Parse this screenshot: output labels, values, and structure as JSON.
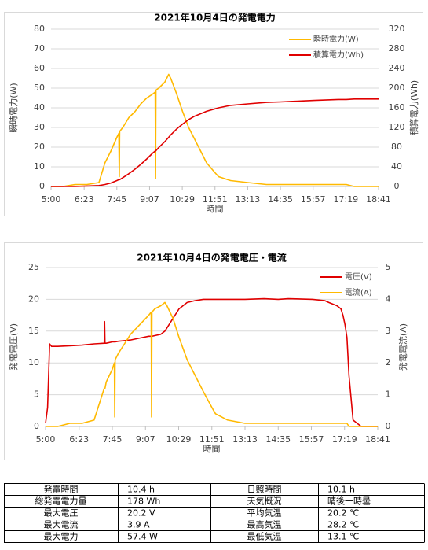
{
  "chart_data": [
    {
      "type": "line",
      "title": "2021年10月4日の発電電力",
      "xlabel": "時間",
      "ylabel": "瞬時電力(W)",
      "y2label": "積算電力(Wh)",
      "legend": "upper right",
      "grid": true,
      "xlim": [
        300,
        1121
      ],
      "xticks": [
        {
          "value": 300,
          "label": "5:00"
        },
        {
          "value": 383,
          "label": "6:23"
        },
        {
          "value": 465,
          "label": "7:45"
        },
        {
          "value": 547,
          "label": "9:07"
        },
        {
          "value": 629,
          "label": "10:29"
        },
        {
          "value": 711,
          "label": "11:51"
        },
        {
          "value": 793,
          "label": "13:13"
        },
        {
          "value": 875,
          "label": "14:35"
        },
        {
          "value": 957,
          "label": "15:57"
        },
        {
          "value": 1039,
          "label": "17:19"
        },
        {
          "value": 1121,
          "label": "18:41"
        }
      ],
      "ylim": [
        0,
        80
      ],
      "yticks": [
        0,
        10,
        20,
        30,
        40,
        50,
        60,
        70,
        80
      ],
      "y2lim": [
        0,
        320
      ],
      "y2ticks": [
        0,
        40,
        80,
        120,
        160,
        200,
        240,
        280,
        320
      ],
      "x": [
        300,
        330,
        360,
        390,
        420,
        435,
        450,
        465,
        470,
        471,
        472,
        480,
        495,
        510,
        525,
        540,
        555,
        561,
        562,
        563,
        570,
        585,
        595,
        600,
        615,
        630,
        645,
        660,
        675,
        690,
        711,
        720,
        750,
        793,
        840,
        875,
        900,
        960,
        1020,
        1040,
        1060,
        1080,
        1121
      ],
      "series": [
        {
          "name": "瞬時電力(W)",
          "color": "#ffb900",
          "values": [
            0,
            0,
            1,
            1,
            2,
            12,
            18,
            25,
            27,
            5,
            28,
            30,
            35,
            38,
            42,
            45,
            47,
            48,
            4,
            49,
            50,
            53,
            57,
            55,
            47,
            38,
            30,
            24,
            18,
            12,
            7,
            5,
            3,
            2,
            1,
            1,
            1,
            1,
            1,
            1,
            0,
            0,
            0
          ]
        },
        {
          "name": "積算電力(Wh)",
          "color": "#e00000",
          "axis": "y2",
          "values": [
            0,
            0,
            0,
            1,
            2,
            4,
            7,
            12,
            14,
            14,
            14,
            18,
            26,
            35,
            45,
            56,
            68,
            72,
            72,
            73,
            79,
            91,
            100,
            105,
            117,
            127,
            136,
            143,
            148,
            153,
            158,
            160,
            165,
            168,
            171,
            172,
            173,
            175,
            177,
            177,
            178,
            178,
            178
          ]
        }
      ]
    },
    {
      "type": "line",
      "title": "2021年10月4日の発電電圧・電流",
      "xlabel": "時間",
      "ylabel": "発電電圧(V)",
      "y2label": "発電電流(A)",
      "legend": "upper right",
      "grid": true,
      "xlim": [
        300,
        1121
      ],
      "xticks": [
        {
          "value": 300,
          "label": "5:00"
        },
        {
          "value": 383,
          "label": "6:23"
        },
        {
          "value": 465,
          "label": "7:45"
        },
        {
          "value": 547,
          "label": "9:07"
        },
        {
          "value": 629,
          "label": "10:29"
        },
        {
          "value": 711,
          "label": "11:51"
        },
        {
          "value": 793,
          "label": "13:13"
        },
        {
          "value": 875,
          "label": "14:35"
        },
        {
          "value": 957,
          "label": "15:57"
        },
        {
          "value": 1039,
          "label": "17:19"
        },
        {
          "value": 1121,
          "label": "18:41"
        }
      ],
      "ylim": [
        0,
        25
      ],
      "yticks": [
        0,
        5,
        10,
        15,
        20,
        25
      ],
      "y2lim": [
        0,
        5
      ],
      "y2ticks": [
        0,
        1,
        2,
        3,
        4,
        5
      ],
      "x": [
        300,
        305,
        310,
        315,
        330,
        360,
        390,
        420,
        445,
        446,
        447,
        450,
        465,
        470,
        471,
        472,
        480,
        495,
        510,
        525,
        540,
        555,
        561,
        562,
        563,
        570,
        585,
        595,
        600,
        615,
        630,
        650,
        670,
        690,
        711,
        720,
        750,
        793,
        840,
        875,
        900,
        960,
        990,
        1000,
        1020,
        1030,
        1035,
        1040,
        1045,
        1050,
        1060,
        1080,
        1121
      ],
      "series": [
        {
          "name": "電圧(V)",
          "color": "#e00000",
          "values": [
            0.5,
            3,
            13,
            12.6,
            12.6,
            12.7,
            12.8,
            13,
            13.1,
            16.5,
            13.1,
            13.1,
            13.3,
            13.3,
            13.3,
            13.3,
            13.4,
            13.5,
            13.6,
            13.8,
            14,
            14.2,
            14.2,
            14.2,
            14.2,
            14.3,
            14.5,
            15,
            15.5,
            17,
            18.5,
            19.5,
            19.8,
            20,
            20,
            20,
            20,
            20,
            20.1,
            20,
            20.1,
            20,
            19.8,
            19.5,
            19,
            18.5,
            17.5,
            16,
            14,
            8,
            1,
            0,
            0
          ]
        },
        {
          "name": "電流(A)",
          "color": "#ffb900",
          "axis": "y2",
          "values": [
            0,
            0,
            0,
            0,
            0,
            0.1,
            0.1,
            0.2,
            1.2,
            1.2,
            1.2,
            1.4,
            1.8,
            2,
            0.3,
            2.1,
            2.3,
            2.6,
            2.9,
            3.1,
            3.3,
            3.5,
            3.6,
            0.3,
            3.6,
            3.7,
            3.8,
            3.9,
            3.8,
            3.4,
            2.8,
            2.1,
            1.6,
            1.1,
            0.6,
            0.4,
            0.2,
            0.1,
            0.1,
            0.1,
            0.1,
            0.1,
            0.1,
            0.1,
            0.1,
            0.1,
            0.1,
            0.1,
            0.1,
            0,
            0,
            0,
            0
          ]
        }
      ]
    }
  ],
  "table": {
    "rows": [
      [
        "発電時間",
        "10.4 h",
        "日照時間",
        "10.1 h"
      ],
      [
        "総発電電力量",
        "178 Wh",
        "天気概況",
        "晴後一時曇"
      ],
      [
        "最大電圧",
        "20.2 V",
        "平均気温",
        "20.2 ℃"
      ],
      [
        "最大電流",
        "3.9 A",
        "最高気温",
        "28.2 ℃"
      ],
      [
        "最大電力",
        "57.4 W",
        "最低気温",
        "13.1 ℃"
      ]
    ]
  }
}
